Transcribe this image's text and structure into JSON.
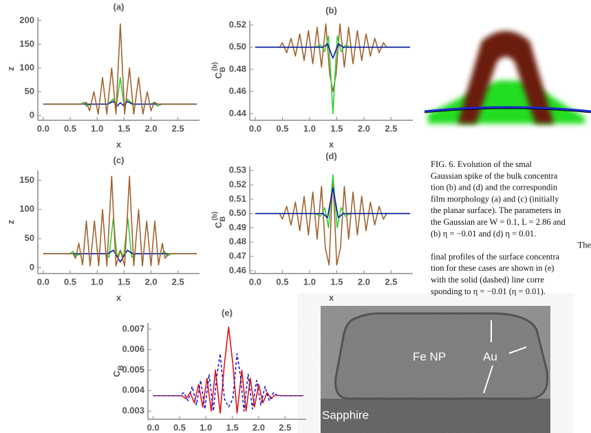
{
  "chart_data": [
    {
      "type": "line",
      "title": "(a)",
      "x_label": "x",
      "ylabel": {
        "base": "z"
      },
      "xlim": [
        -0.1,
        2.9
      ],
      "ylim": [
        -10,
        207
      ],
      "xticks": [
        {
          "value": 0,
          "label": "0.0"
        },
        0.5,
        {
          "value": 1,
          "label": "1.0"
        },
        1.5,
        {
          "value": 2,
          "label": "2.0"
        },
        2.5
      ],
      "yticks": [
        0,
        50,
        100,
        150,
        200
      ],
      "series": [
        {
          "color": "#33cc33",
          "x": [
            0,
            0.7,
            0.75,
            0.8,
            0.9,
            1.2,
            1.3,
            1.36,
            1.43,
            1.5,
            1.56,
            1.66,
            2.0,
            2.06,
            2.12,
            2.2,
            2.85
          ],
          "values": [
            24,
            24,
            28,
            20,
            24,
            24,
            35,
            22,
            80,
            22,
            35,
            24,
            24,
            28,
            20,
            24,
            24
          ]
        },
        {
          "color": "#0a1aa8",
          "x": [
            0,
            1.2,
            1.3,
            1.37,
            1.43,
            1.5,
            1.56,
            1.65,
            2.85
          ],
          "values": [
            24,
            24,
            30,
            20,
            27,
            20,
            30,
            24,
            24
          ]
        },
        {
          "color": "#a0622d",
          "x": [
            0,
            0.75,
            0.8,
            0.86,
            0.94,
            1.02,
            1.1,
            1.18,
            1.27,
            1.35,
            1.43,
            1.51,
            1.6,
            1.68,
            1.77,
            1.85,
            1.93,
            2.0,
            2.06,
            2.12,
            2.85
          ],
          "values": [
            24,
            24,
            28,
            10,
            50,
            3,
            80,
            3,
            100,
            3,
            193,
            3,
            100,
            3,
            80,
            3,
            50,
            10,
            28,
            24,
            24
          ]
        }
      ]
    },
    {
      "type": "line",
      "title": "(b)",
      "x_label": "x",
      "ylabel": {
        "base": "C",
        "sub": "B",
        "sup": "(b)"
      },
      "xlim": [
        -0.1,
        2.9
      ],
      "ylim": [
        0.434,
        0.524
      ],
      "xticks": [
        {
          "value": 0,
          "label": "0.0"
        },
        0.5,
        {
          "value": 1,
          "label": "1.0"
        },
        1.5,
        {
          "value": 2,
          "label": "2.0"
        },
        2.5
      ],
      "yticks": [
        0.44,
        0.46,
        0.48,
        {
          "value": 0.5,
          "label": "0.50"
        },
        0.52
      ],
      "series": [
        {
          "color": "#a0622d",
          "x": [
            0,
            0.45,
            0.5,
            0.58,
            0.66,
            0.74,
            0.82,
            0.9,
            0.98,
            1.06,
            1.14,
            1.22,
            1.3,
            1.37,
            1.43,
            1.49,
            1.56,
            1.64,
            1.72,
            1.8,
            1.88,
            1.96,
            2.04,
            2.12,
            2.2,
            2.28,
            2.36,
            2.42,
            2.85
          ],
          "values": [
            0.5,
            0.5,
            0.504,
            0.495,
            0.508,
            0.492,
            0.512,
            0.488,
            0.515,
            0.485,
            0.518,
            0.482,
            0.521,
            0.476,
            0.46,
            0.476,
            0.521,
            0.482,
            0.518,
            0.485,
            0.515,
            0.488,
            0.512,
            0.492,
            0.508,
            0.495,
            0.504,
            0.5,
            0.5
          ]
        },
        {
          "color": "#33cc33",
          "x": [
            0,
            1.1,
            1.2,
            1.28,
            1.35,
            1.43,
            1.51,
            1.58,
            1.66,
            1.75,
            2.85
          ],
          "values": [
            0.5,
            0.5,
            0.502,
            0.496,
            0.51,
            0.44,
            0.51,
            0.496,
            0.502,
            0.5,
            0.5
          ]
        },
        {
          "color": "#0a1aa8",
          "x": [
            0,
            1.25,
            1.33,
            1.43,
            1.53,
            1.62,
            2.85
          ],
          "values": [
            0.5,
            0.5,
            0.503,
            0.49,
            0.503,
            0.5,
            0.5
          ]
        }
      ]
    },
    {
      "type": "line",
      "title": "(c)",
      "x_label": "x",
      "ylabel": {
        "base": "z"
      },
      "xlim": [
        -0.1,
        2.9
      ],
      "ylim": [
        -10,
        167
      ],
      "xticks": [
        {
          "value": 0,
          "label": "0.0"
        },
        0.5,
        {
          "value": 1,
          "label": "1.0"
        },
        1.5,
        {
          "value": 2,
          "label": "2.0"
        },
        2.5
      ],
      "yticks": [
        0,
        50,
        100,
        150
      ],
      "series": [
        {
          "color": "#33cc33",
          "x": [
            0,
            0.5,
            0.55,
            0.6,
            0.7,
            1.15,
            1.22,
            1.3,
            1.37,
            1.43,
            1.49,
            1.57,
            1.64,
            1.72,
            2.2,
            2.25,
            2.3,
            2.38,
            2.85
          ],
          "values": [
            24,
            24,
            28,
            20,
            24,
            24,
            18,
            85,
            18,
            30,
            18,
            85,
            18,
            24,
            24,
            28,
            20,
            24,
            24
          ]
        },
        {
          "color": "#0a1aa8",
          "x": [
            0,
            1.2,
            1.3,
            1.43,
            1.56,
            1.66,
            2.85
          ],
          "values": [
            24,
            24,
            30,
            10,
            30,
            24,
            24
          ]
        },
        {
          "color": "#a0622d",
          "x": [
            0,
            0.55,
            0.6,
            0.66,
            0.73,
            0.8,
            0.87,
            0.95,
            1.03,
            1.1,
            1.18,
            1.27,
            1.35,
            1.43,
            1.51,
            1.6,
            1.68,
            1.77,
            1.84,
            1.92,
            2.0,
            2.07,
            2.14,
            2.21,
            2.26,
            2.32,
            2.85
          ],
          "values": [
            24,
            24,
            16,
            42,
            5,
            80,
            3,
            80,
            3,
            100,
            3,
            157,
            3,
            30,
            3,
            157,
            3,
            100,
            3,
            80,
            3,
            80,
            5,
            42,
            16,
            24,
            24
          ]
        }
      ]
    },
    {
      "type": "line",
      "title": "(d)",
      "x_label": "x",
      "ylabel": {
        "base": "C",
        "sub": "B",
        "sup": "(b)"
      },
      "xlim": [
        -0.1,
        2.9
      ],
      "ylim": [
        0.458,
        0.533
      ],
      "xticks": [
        {
          "value": 0,
          "label": "0.0"
        },
        0.5,
        {
          "value": 1,
          "label": "1.0"
        },
        1.5,
        {
          "value": 2,
          "label": "2.0"
        },
        2.5
      ],
      "yticks": [
        0.46,
        0.47,
        0.48,
        0.49,
        {
          "value": 0.5,
          "label": "0.50"
        },
        0.51,
        0.52,
        0.53
      ],
      "series": [
        {
          "color": "#a0622d",
          "x": [
            0,
            0.45,
            0.5,
            0.58,
            0.66,
            0.74,
            0.82,
            0.9,
            0.98,
            1.06,
            1.14,
            1.22,
            1.29,
            1.36,
            1.43,
            1.5,
            1.57,
            1.64,
            1.72,
            1.8,
            1.88,
            1.96,
            2.04,
            2.12,
            2.2,
            2.28,
            2.36,
            2.42,
            2.85
          ],
          "values": [
            0.5,
            0.5,
            0.496,
            0.505,
            0.492,
            0.508,
            0.488,
            0.512,
            0.485,
            0.515,
            0.482,
            0.519,
            0.476,
            0.464,
            0.527,
            0.464,
            0.476,
            0.519,
            0.482,
            0.515,
            0.485,
            0.512,
            0.488,
            0.508,
            0.492,
            0.505,
            0.496,
            0.5,
            0.5
          ]
        },
        {
          "color": "#33cc33",
          "x": [
            0,
            1.1,
            1.2,
            1.28,
            1.35,
            1.43,
            1.51,
            1.58,
            1.66,
            1.75,
            2.85
          ],
          "values": [
            0.5,
            0.5,
            0.498,
            0.504,
            0.49,
            0.527,
            0.49,
            0.504,
            0.498,
            0.5,
            0.5
          ]
        },
        {
          "color": "#0a1aa8",
          "x": [
            0,
            1.25,
            1.33,
            1.43,
            1.53,
            1.62,
            2.85
          ],
          "values": [
            0.5,
            0.5,
            0.497,
            0.518,
            0.497,
            0.5,
            0.5
          ]
        }
      ]
    },
    {
      "type": "line",
      "title": "(e)",
      "ylabel": {
        "base": "C",
        "sub": "B"
      },
      "xlim": [
        -0.1,
        2.9
      ],
      "ylim": [
        0.0026,
        0.0073
      ],
      "xticks": [
        {
          "value": 0,
          "label": "0.0"
        },
        0.5,
        {
          "value": 1,
          "label": "1.0"
        },
        1.5,
        {
          "value": 2,
          "label": "2.0"
        },
        2.5
      ],
      "yticks": [
        0.003,
        0.004,
        0.005,
        0.006,
        0.007
      ],
      "series": [
        {
          "color": "#e01010",
          "x": [
            0,
            0.55,
            0.62,
            0.7,
            0.78,
            0.86,
            0.94,
            1.02,
            1.1,
            1.18,
            1.27,
            1.35,
            1.43,
            1.51,
            1.59,
            1.68,
            1.76,
            1.84,
            1.92,
            2.0,
            2.08,
            2.16,
            2.24,
            2.31,
            2.4,
            2.85
          ],
          "values": [
            0.00375,
            0.00375,
            0.0036,
            0.0039,
            0.0034,
            0.0043,
            0.0032,
            0.0046,
            0.003,
            0.005,
            0.0029,
            0.0053,
            0.0071,
            0.0053,
            0.0029,
            0.005,
            0.003,
            0.0046,
            0.0032,
            0.0043,
            0.0034,
            0.0039,
            0.0036,
            0.0038,
            0.00375,
            0.00375
          ],
          "dash": false
        },
        {
          "color": "#1a1ad0",
          "x": [
            0,
            0.5,
            0.58,
            0.66,
            0.74,
            0.82,
            0.9,
            0.98,
            1.06,
            1.14,
            1.2,
            1.27,
            1.35,
            1.43,
            1.51,
            1.59,
            1.66,
            1.72,
            1.8,
            1.88,
            1.96,
            2.04,
            2.12,
            2.2,
            2.28,
            2.36,
            2.85
          ],
          "values": [
            0.00375,
            0.00375,
            0.0039,
            0.0035,
            0.0042,
            0.0033,
            0.0045,
            0.0031,
            0.0048,
            0.003,
            0.0046,
            0.0058,
            0.0036,
            0.0032,
            0.0036,
            0.0058,
            0.0046,
            0.003,
            0.0048,
            0.0031,
            0.0045,
            0.0033,
            0.0042,
            0.0035,
            0.0039,
            0.00375,
            0.00375
          ],
          "dash": true
        }
      ]
    }
  ],
  "caption": {
    "lines": [
      "FIG. 6. Evolution of the smal",
      "Gaussian spike of the bulk concentra",
      "tion (b) and (d) and the correspondin",
      "film morphology (a) and (c) (initially",
      "the planar surface). The parameters in",
      "the Gaussian are W = 0.1, L = 2.86 and",
      "(b) η = −0.01 and (d) η = 0.01.",
      "The",
      "final profiles of the surface concentra",
      "tion for these cases are shown in (e)",
      "with the solid (dashed) line corre",
      "sponding to η = −0.01 (η = 0.01)."
    ]
  },
  "tem_image": {
    "labels": [
      "Fe NP",
      "Au",
      "Sapphire"
    ]
  }
}
